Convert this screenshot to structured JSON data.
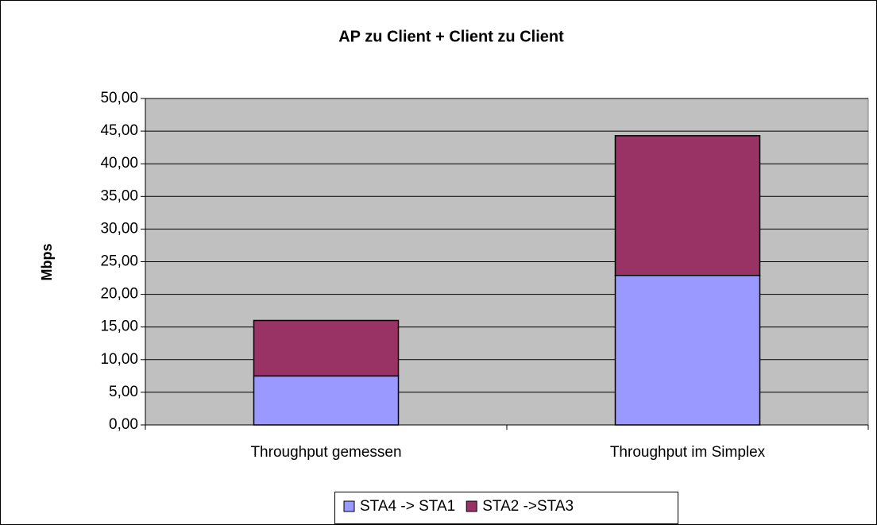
{
  "chart_data": {
    "type": "stacked_bar",
    "title": "AP zu Client + Client zu Client",
    "y_label": "Mbps",
    "categories": [
      "Throughput gemessen",
      "Throughput im Simplex"
    ],
    "series": [
      {
        "name": "STA4 -> STA1",
        "color": "#9999ff",
        "values": [
          7.5,
          22.9
        ]
      },
      {
        "name": "STA2 ->STA3",
        "color": "#993366",
        "values": [
          8.5,
          21.4
        ]
      }
    ],
    "ylim": [
      0,
      50
    ],
    "yticks": [
      {
        "value": 0,
        "label": "0,00"
      },
      {
        "value": 5,
        "label": "5,00"
      },
      {
        "value": 10,
        "label": "10,00"
      },
      {
        "value": 15,
        "label": "15,00"
      },
      {
        "value": 20,
        "label": "20,00"
      },
      {
        "value": 25,
        "label": "25,00"
      },
      {
        "value": 30,
        "label": "30,00"
      },
      {
        "value": 35,
        "label": "35,00"
      },
      {
        "value": 40,
        "label": "40,00"
      },
      {
        "value": 45,
        "label": "45,00"
      },
      {
        "value": 50,
        "label": "50,00"
      }
    ],
    "grid": true,
    "plot_background": "#c0c0c0",
    "legend": "bottom"
  }
}
